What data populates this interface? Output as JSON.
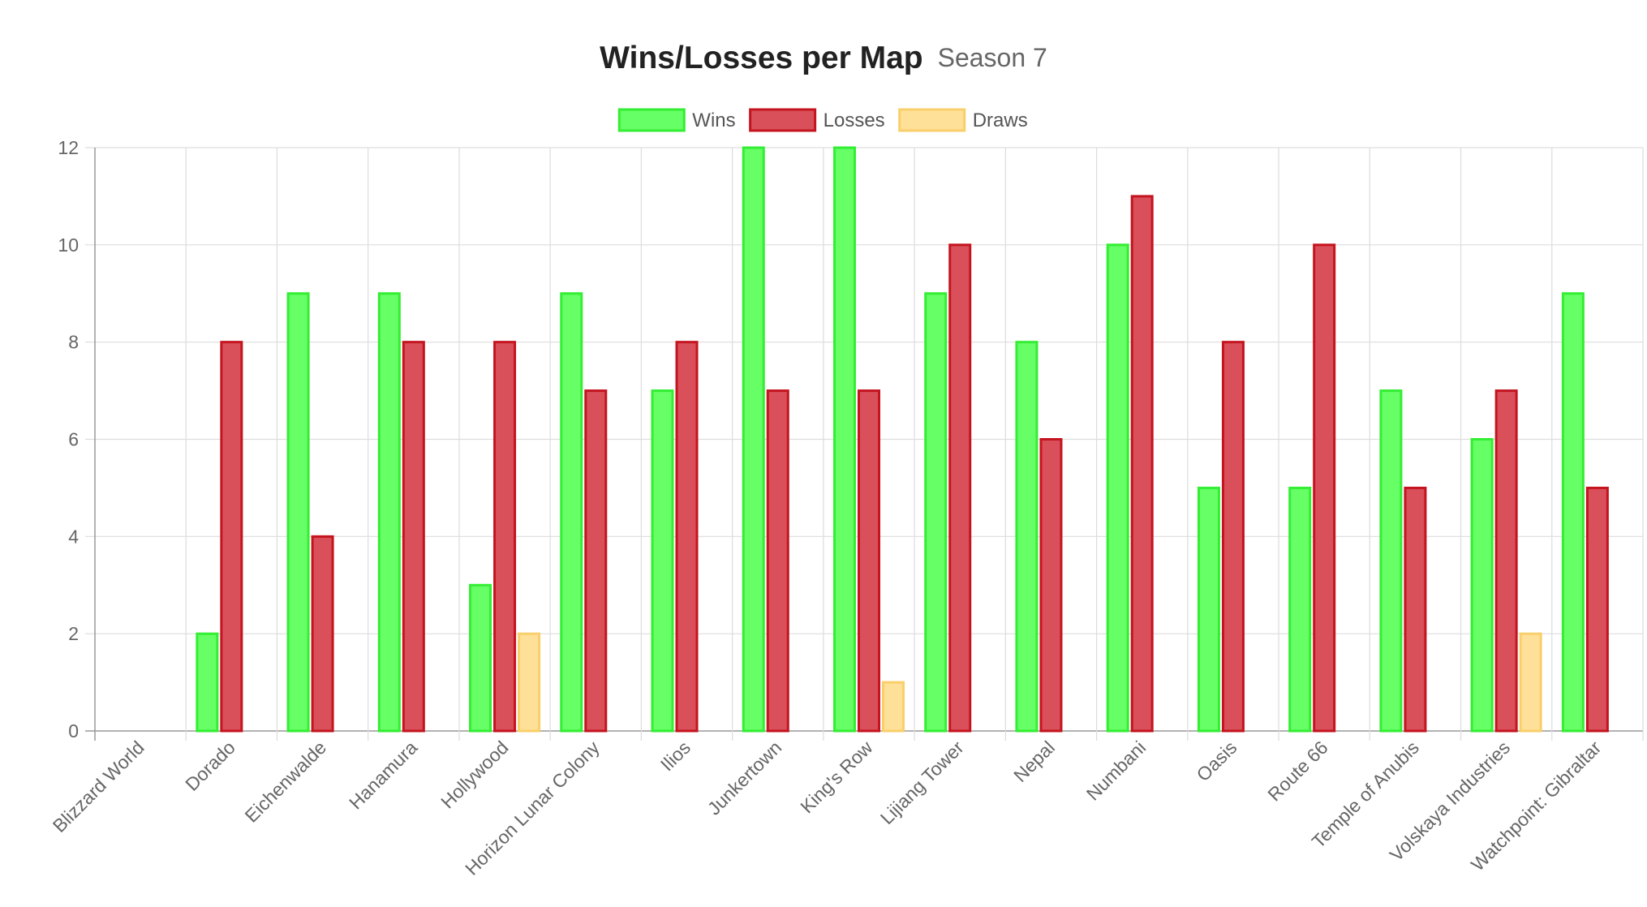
{
  "chart_data": {
    "type": "bar",
    "title": "Wins/Losses per Map",
    "subtitle": "Season 7",
    "categories": [
      "Blizzard World",
      "Dorado",
      "Eichenwalde",
      "Hanamura",
      "Hollywood",
      "Horizon Lunar Colony",
      "Ilios",
      "Junkertown",
      "King's Row",
      "Lijiang Tower",
      "Nepal",
      "Numbani",
      "Oasis",
      "Route 66",
      "Temple of Anubis",
      "Volskaya Industries",
      "Watchpoint: Gibraltar"
    ],
    "series": [
      {
        "name": "Wins",
        "values": [
          0,
          2,
          9,
          9,
          3,
          9,
          7,
          12,
          12,
          9,
          8,
          10,
          5,
          5,
          7,
          6,
          9
        ],
        "fill": "#66ff66",
        "stroke": "#33ee33"
      },
      {
        "name": "Losses",
        "values": [
          0,
          8,
          4,
          8,
          8,
          7,
          8,
          7,
          7,
          10,
          6,
          11,
          8,
          10,
          5,
          7,
          5
        ],
        "fill": "#d9505b",
        "stroke": "#c4141e"
      },
      {
        "name": "Draws",
        "values": [
          0,
          0,
          0,
          0,
          2,
          0,
          0,
          0,
          1,
          0,
          0,
          0,
          0,
          0,
          0,
          2,
          0
        ],
        "fill": "#ffe098",
        "stroke": "#f8cf6a"
      }
    ],
    "ylim": [
      0,
      12
    ],
    "yticks": [
      0,
      2,
      4,
      6,
      8,
      10,
      12
    ],
    "grid": true,
    "legend": "top-center"
  }
}
